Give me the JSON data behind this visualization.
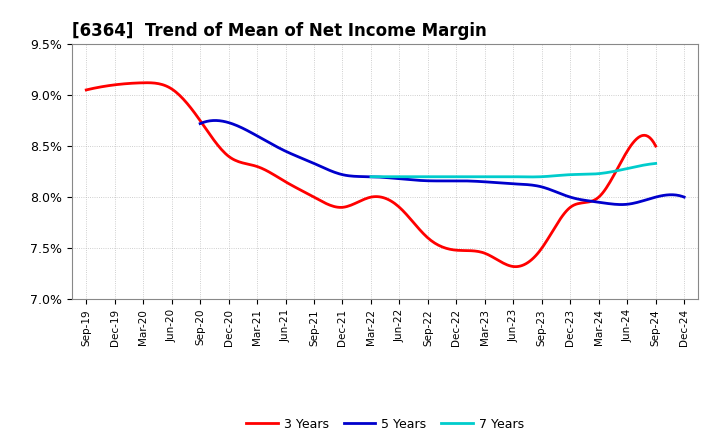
{
  "title": "[6364]  Trend of Mean of Net Income Margin",
  "title_fontsize": 12,
  "ylim": [
    0.07,
    0.095
  ],
  "yticks": [
    0.07,
    0.075,
    0.08,
    0.085,
    0.09,
    0.095
  ],
  "ytick_labels": [
    "7.0%",
    "7.5%",
    "8.0%",
    "8.5%",
    "9.0%",
    "9.5%"
  ],
  "x_labels": [
    "Sep-19",
    "Dec-19",
    "Mar-20",
    "Jun-20",
    "Sep-20",
    "Dec-20",
    "Mar-21",
    "Jun-21",
    "Sep-21",
    "Dec-21",
    "Mar-22",
    "Jun-22",
    "Sep-22",
    "Dec-22",
    "Mar-23",
    "Jun-23",
    "Sep-23",
    "Dec-23",
    "Mar-24",
    "Jun-24",
    "Sep-24",
    "Dec-24"
  ],
  "series": {
    "3 Years": {
      "color": "#ff0000",
      "values": [
        0.0905,
        0.091,
        0.0912,
        0.0906,
        0.0875,
        0.084,
        0.083,
        0.0815,
        0.08,
        0.079,
        0.08,
        0.079,
        0.076,
        0.0748,
        0.0745,
        0.0732,
        0.075,
        0.079,
        0.08,
        0.0845,
        0.085,
        null
      ]
    },
    "5 Years": {
      "color": "#0000cc",
      "values": [
        null,
        null,
        null,
        null,
        0.0872,
        0.0873,
        0.086,
        0.0845,
        0.0833,
        0.0822,
        0.082,
        0.0818,
        0.0816,
        0.0816,
        0.0815,
        0.0813,
        0.081,
        0.08,
        0.0795,
        0.0793,
        0.08,
        0.08
      ]
    },
    "7 Years": {
      "color": "#00cccc",
      "values": [
        null,
        null,
        null,
        null,
        null,
        null,
        null,
        null,
        null,
        null,
        0.082,
        0.082,
        0.082,
        0.082,
        0.082,
        0.082,
        0.082,
        0.0822,
        0.0823,
        0.0828,
        0.0833,
        null
      ]
    },
    "10 Years": {
      "color": "#008000",
      "values": [
        null,
        null,
        null,
        null,
        null,
        null,
        null,
        null,
        null,
        null,
        null,
        null,
        null,
        null,
        null,
        null,
        null,
        null,
        null,
        null,
        null,
        null
      ]
    }
  },
  "background_color": "#ffffff",
  "grid_color": "#b0b0b0",
  "legend_ncol": 4,
  "line_width": 2.0
}
